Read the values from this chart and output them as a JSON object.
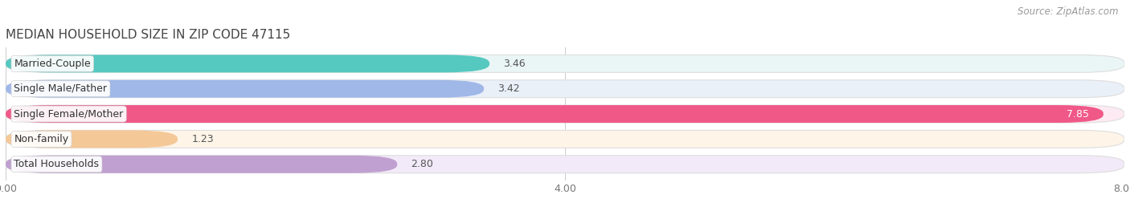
{
  "title": "MEDIAN HOUSEHOLD SIZE IN ZIP CODE 47115",
  "source": "Source: ZipAtlas.com",
  "categories": [
    "Married-Couple",
    "Single Male/Father",
    "Single Female/Mother",
    "Non-family",
    "Total Households"
  ],
  "values": [
    3.46,
    3.42,
    7.85,
    1.23,
    2.8
  ],
  "bar_colors": [
    "#55c8c0",
    "#a0b8e8",
    "#f05888",
    "#f5c898",
    "#c0a0d0"
  ],
  "bar_bg_colors": [
    "#eaf6f6",
    "#eaf0f8",
    "#fdeaf2",
    "#fef5e8",
    "#f2eaf8"
  ],
  "xlim": [
    0,
    8.0
  ],
  "xticks": [
    0.0,
    4.0,
    8.0
  ],
  "xtick_labels": [
    "0.00",
    "4.00",
    "8.00"
  ],
  "title_fontsize": 11,
  "label_fontsize": 9,
  "value_fontsize": 9,
  "source_fontsize": 8.5,
  "background_color": "#ffffff",
  "value_inside_threshold": 5.0
}
